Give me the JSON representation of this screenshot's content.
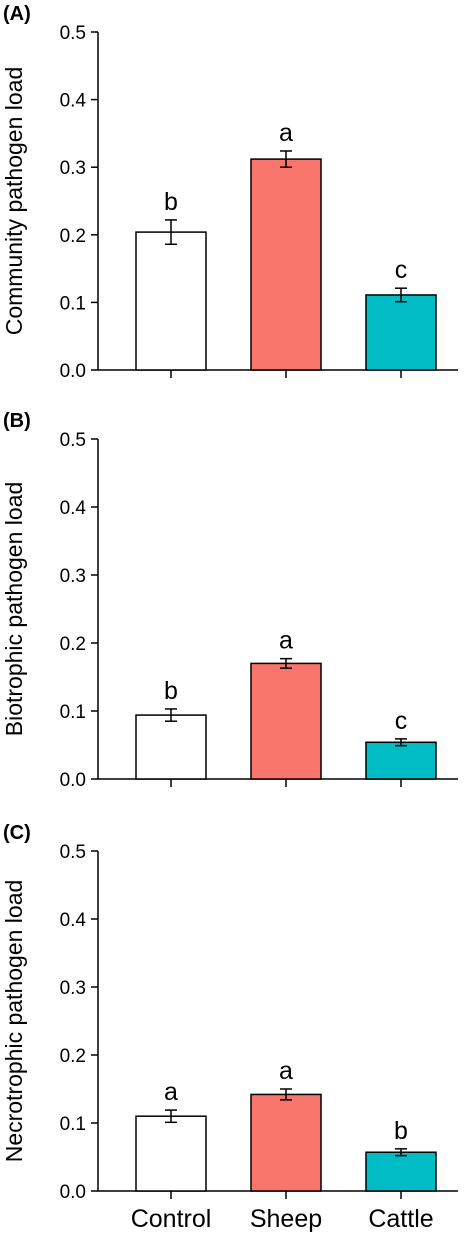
{
  "chart_data": [
    {
      "type": "bar",
      "panel_label": "(A)",
      "ylabel": "Community pathogen load",
      "categories": [
        "Control",
        "Sheep",
        "Cattle"
      ],
      "values": [
        0.204,
        0.312,
        0.111
      ],
      "errors": [
        0.018,
        0.012,
        0.01
      ],
      "significance": [
        "b",
        "a",
        "c"
      ],
      "ylim": [
        0,
        0.5
      ],
      "yticks": [
        "0.0",
        "0.1",
        "0.2",
        "0.3",
        "0.4",
        "0.5"
      ],
      "colors": [
        "#ffffff",
        "#f8756c",
        "#00bcc4"
      ],
      "show_category_labels": false
    },
    {
      "type": "bar",
      "panel_label": "(B)",
      "ylabel": "Biotrophic pathogen load",
      "categories": [
        "Control",
        "Sheep",
        "Cattle"
      ],
      "values": [
        0.094,
        0.17,
        0.054
      ],
      "errors": [
        0.009,
        0.007,
        0.005
      ],
      "significance": [
        "b",
        "a",
        "c"
      ],
      "ylim": [
        0,
        0.5
      ],
      "yticks": [
        "0.0",
        "0.1",
        "0.2",
        "0.3",
        "0.4",
        "0.5"
      ],
      "colors": [
        "#ffffff",
        "#f8756c",
        "#00bcc4"
      ],
      "show_category_labels": false
    },
    {
      "type": "bar",
      "panel_label": "(C)",
      "ylabel": "Necrotrophic pathogen load",
      "categories": [
        "Control",
        "Sheep",
        "Cattle"
      ],
      "values": [
        0.11,
        0.142,
        0.057
      ],
      "errors": [
        0.009,
        0.008,
        0.005
      ],
      "significance": [
        "a",
        "a",
        "b"
      ],
      "ylim": [
        0,
        0.5
      ],
      "yticks": [
        "0.0",
        "0.1",
        "0.2",
        "0.3",
        "0.4",
        "0.5"
      ],
      "colors": [
        "#ffffff",
        "#f8756c",
        "#00bcc4"
      ],
      "show_category_labels": true
    }
  ]
}
